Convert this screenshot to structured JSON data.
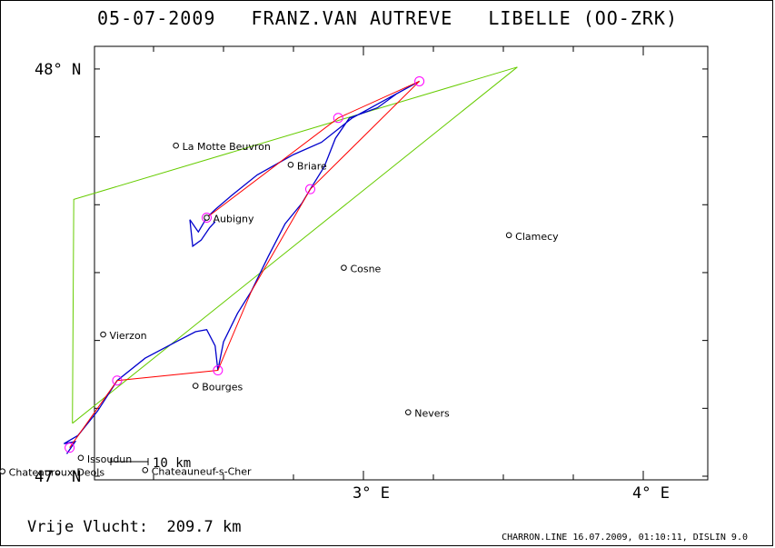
{
  "header": {
    "date": "05-07-2009",
    "pilot": "FRANZ.VAN AUTREVE",
    "glider": "LIBELLE (OO-ZRK)"
  },
  "distance": {
    "label": "Vrije Vlucht:",
    "value": "209.7 km"
  },
  "footer": "CHARRON.LINE 16.07.2009, 01:10:11, DISLIN 9.0",
  "axes": {
    "lat_labels": [
      {
        "value": 48,
        "text": "48° N"
      },
      {
        "value": 47,
        "text": "47° N"
      }
    ],
    "lon_labels": [
      {
        "value": 3,
        "text": "3° E"
      },
      {
        "value": 4,
        "text": "4° E"
      }
    ]
  },
  "scale_bar": "10 km",
  "colors": {
    "task": "#66cc00",
    "route": "#ff0000",
    "track": "#0000cc",
    "turnpoint": "#ff00ff"
  },
  "towns": [
    {
      "name": "La Motte Beuvron",
      "lon": 2.33,
      "lat": 47.812
    },
    {
      "name": "Briare",
      "lon": 2.74,
      "lat": 47.765
    },
    {
      "name": "Aubigny",
      "lon": 2.44,
      "lat": 47.635
    },
    {
      "name": "Clamecy",
      "lon": 3.52,
      "lat": 47.592
    },
    {
      "name": "Cosne",
      "lon": 2.93,
      "lat": 47.512
    },
    {
      "name": "Vierzon",
      "lon": 2.07,
      "lat": 47.348
    },
    {
      "name": "Bourges",
      "lon": 2.4,
      "lat": 47.222
    },
    {
      "name": "Nevers",
      "lon": 3.16,
      "lat": 47.157
    },
    {
      "name": "Issoudun",
      "lon": 1.99,
      "lat": 47.045
    },
    {
      "name": "Chateauroux-Deols",
      "lon": 1.71,
      "lat": 47.012
    },
    {
      "name": "Chateauneuf-s-Cher",
      "lon": 2.22,
      "lat": 47.015
    }
  ],
  "task_polygon": [
    {
      "lon": 1.96,
      "lat": 47.13
    },
    {
      "lon": 1.965,
      "lat": 47.68
    },
    {
      "lon": 3.55,
      "lat": 48.005
    },
    {
      "lon": 1.96,
      "lat": 47.13
    }
  ],
  "turnpoints": [
    {
      "lon": 1.95,
      "lat": 47.07
    },
    {
      "lon": 2.12,
      "lat": 47.235
    },
    {
      "lon": 2.48,
      "lat": 47.26
    },
    {
      "lon": 2.81,
      "lat": 47.705
    },
    {
      "lon": 2.91,
      "lat": 47.88
    },
    {
      "lon": 3.2,
      "lat": 47.97
    },
    {
      "lon": 2.44,
      "lat": 47.635
    }
  ],
  "route": [
    {
      "lon": 1.95,
      "lat": 47.07
    },
    {
      "lon": 2.12,
      "lat": 47.235
    },
    {
      "lon": 2.48,
      "lat": 47.26
    },
    {
      "lon": 2.6,
      "lat": 47.455
    },
    {
      "lon": 2.81,
      "lat": 47.705
    },
    {
      "lon": 3.2,
      "lat": 47.97
    },
    {
      "lon": 2.91,
      "lat": 47.88
    },
    {
      "lon": 2.44,
      "lat": 47.635
    }
  ],
  "track": [
    {
      "lon": 1.94,
      "lat": 47.055
    },
    {
      "lon": 1.97,
      "lat": 47.085
    },
    {
      "lon": 1.93,
      "lat": 47.08
    },
    {
      "lon": 1.98,
      "lat": 47.1
    },
    {
      "lon": 2.05,
      "lat": 47.16
    },
    {
      "lon": 2.12,
      "lat": 47.235
    },
    {
      "lon": 2.22,
      "lat": 47.29
    },
    {
      "lon": 2.33,
      "lat": 47.33
    },
    {
      "lon": 2.4,
      "lat": 47.355
    },
    {
      "lon": 2.44,
      "lat": 47.36
    },
    {
      "lon": 2.47,
      "lat": 47.32
    },
    {
      "lon": 2.48,
      "lat": 47.26
    },
    {
      "lon": 2.5,
      "lat": 47.33
    },
    {
      "lon": 2.55,
      "lat": 47.4
    },
    {
      "lon": 2.6,
      "lat": 47.455
    },
    {
      "lon": 2.66,
      "lat": 47.54
    },
    {
      "lon": 2.72,
      "lat": 47.62
    },
    {
      "lon": 2.78,
      "lat": 47.67
    },
    {
      "lon": 2.81,
      "lat": 47.705
    },
    {
      "lon": 2.86,
      "lat": 47.76
    },
    {
      "lon": 2.9,
      "lat": 47.83
    },
    {
      "lon": 2.95,
      "lat": 47.88
    },
    {
      "lon": 3.05,
      "lat": 47.905
    },
    {
      "lon": 3.12,
      "lat": 47.94
    },
    {
      "lon": 3.2,
      "lat": 47.97
    },
    {
      "lon": 3.08,
      "lat": 47.925
    },
    {
      "lon": 2.96,
      "lat": 47.88
    },
    {
      "lon": 2.85,
      "lat": 47.82
    },
    {
      "lon": 2.75,
      "lat": 47.79
    },
    {
      "lon": 2.62,
      "lat": 47.74
    },
    {
      "lon": 2.53,
      "lat": 47.69
    },
    {
      "lon": 2.47,
      "lat": 47.655
    },
    {
      "lon": 2.44,
      "lat": 47.635
    },
    {
      "lon": 2.41,
      "lat": 47.6
    },
    {
      "lon": 2.38,
      "lat": 47.63
    },
    {
      "lon": 2.39,
      "lat": 47.565
    },
    {
      "lon": 2.42,
      "lat": 47.58
    },
    {
      "lon": 2.45,
      "lat": 47.61
    },
    {
      "lon": 2.47,
      "lat": 47.625
    }
  ]
}
